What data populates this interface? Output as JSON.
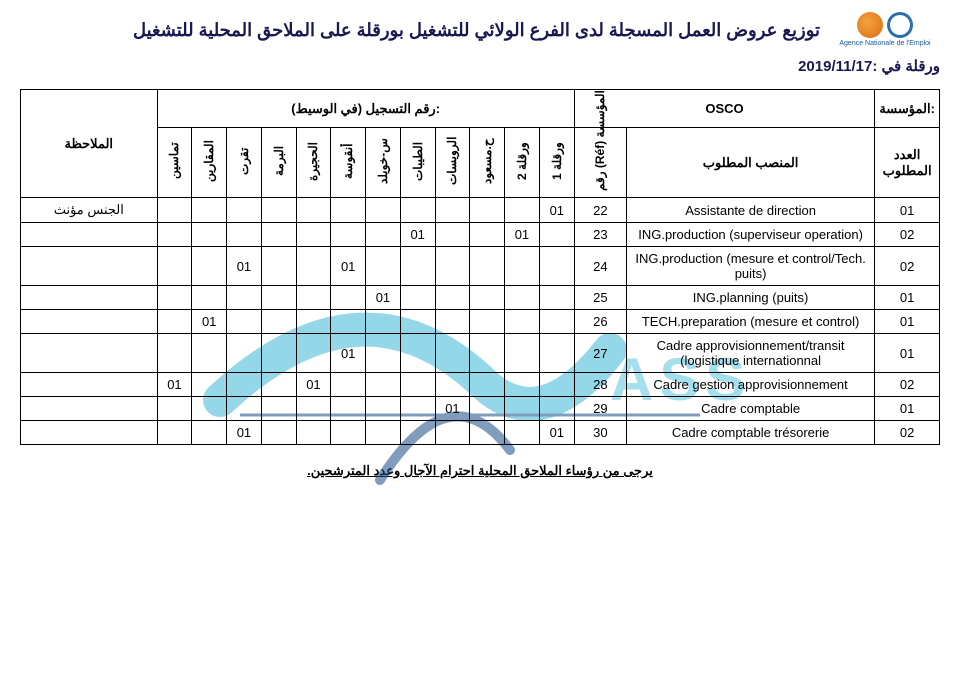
{
  "logo_caption": "Agence Nationale de l'Emploi",
  "title": "توزيع عروض العمل المسجلة لدى الفرع الولائي للتشغيل بورقلة على الملاحق المحلية للتشغيل",
  "subheader": "ورقلة في :2019/11/17",
  "footer": "يرجى من رؤساء الملاحق المحلية احترام الآجال وعدد المترشحين.",
  "head": {
    "company_label": "المؤسسة:",
    "osco": "OSCO",
    "reg_label": "رقم التسجيل (في الوسيط):",
    "count_label": "العدد المطلوب",
    "post_label": "المنصب المطلوب",
    "ref_label": "رقم (Réf) المؤسسة",
    "note_label": "الملاحظة",
    "cols": {
      "ouargla1": "ورقلة 1",
      "ouargla2": "ورقلة 2",
      "hmesaoud": "ح.مسعود",
      "rouissat": "الرويسات",
      "tayibat": "الطيبات",
      "skhouild": "س-خويلد",
      "ngoussa": "أنقوسة",
      "hadjira": "الحجيرة",
      "borma": "البرمة",
      "touggourt": "تقرت",
      "megarin": "المقارين",
      "tamacine": "تماسين"
    }
  },
  "rows": [
    {
      "count": "01",
      "post": "Assistante de direction",
      "ref": "22",
      "cells": {
        "ouargla1": "01"
      },
      "note": "الجنس مؤنث"
    },
    {
      "count": "02",
      "post": "ING.production (superviseur operation)",
      "ref": "23",
      "cells": {
        "ouargla2": "01",
        "tayibat": "01"
      }
    },
    {
      "count": "02",
      "post": "ING.production (mesure et control/Tech. puits)",
      "ref": "24",
      "cells": {
        "ngoussa": "01",
        "touggourt": "01"
      }
    },
    {
      "count": "01",
      "post": "ING.planning (puits)",
      "ref": "25",
      "cells": {
        "skhouild": "01"
      }
    },
    {
      "count": "01",
      "post": "TECH.preparation (mesure et control)",
      "ref": "26",
      "cells": {
        "megarin": "01"
      }
    },
    {
      "count": "01",
      "post": "Cadre approvisionnement/transit (logistique internationnal",
      "ref": "27",
      "cells": {
        "ngoussa": "01"
      }
    },
    {
      "count": "02",
      "post": "Cadre gestion approvisionnement",
      "ref": "28",
      "cells": {
        "hadjira": "01",
        "tamacine": "01"
      }
    },
    {
      "count": "01",
      "post": "Cadre comptable",
      "ref": "29",
      "cells": {
        "rouissat": "01"
      }
    },
    {
      "count": "02",
      "post": "Cadre comptable trésorerie",
      "ref": "30",
      "cells": {
        "ouargla1": "01",
        "touggourt": "01"
      }
    }
  ],
  "colOrder": [
    "note",
    "tamacine",
    "megarin",
    "touggourt",
    "borma",
    "hadjira",
    "ngoussa",
    "skhouild",
    "tayibat",
    "rouissat",
    "hmesaoud",
    "ouargla2",
    "ouargla1",
    "ref",
    "post",
    "count"
  ]
}
